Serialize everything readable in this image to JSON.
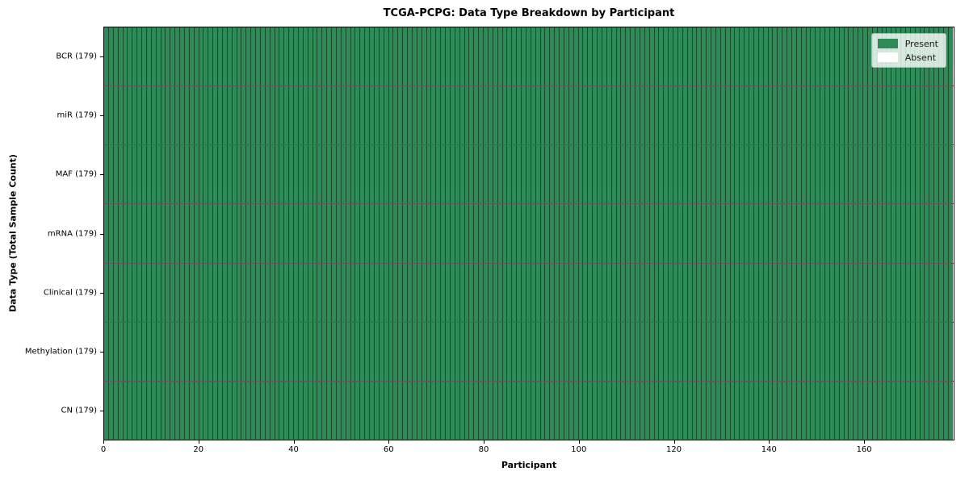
{
  "chart_data": {
    "type": "heatmap",
    "title": "TCGA-PCPG: Data Type Breakdown by Participant",
    "xlabel": "Participant",
    "ylabel": "Data Type (Total Sample Count)",
    "x_range": [
      0,
      179
    ],
    "x_ticks": [
      0,
      20,
      40,
      60,
      80,
      100,
      120,
      140,
      160
    ],
    "n_participants": 179,
    "rows": [
      {
        "label": "BCR (179)",
        "data_type": "BCR",
        "total_samples": 179,
        "present_count": 179,
        "absent_count": 0
      },
      {
        "label": "miR (179)",
        "data_type": "miR",
        "total_samples": 179,
        "present_count": 179,
        "absent_count": 0
      },
      {
        "label": "MAF (179)",
        "data_type": "MAF",
        "total_samples": 179,
        "present_count": 179,
        "absent_count": 0
      },
      {
        "label": "mRNA (179)",
        "data_type": "mRNA",
        "total_samples": 179,
        "present_count": 179,
        "absent_count": 0
      },
      {
        "label": "Clinical (179)",
        "data_type": "Clinical",
        "total_samples": 179,
        "present_count": 179,
        "absent_count": 0
      },
      {
        "label": "Methylation (179)",
        "data_type": "Methylation",
        "total_samples": 179,
        "present_count": 179,
        "absent_count": 0
      },
      {
        "label": "CN (179)",
        "data_type": "CN",
        "total_samples": 179,
        "present_count": 179,
        "absent_count": 0
      }
    ],
    "legend": {
      "position": "upper right",
      "entries": [
        {
          "label": "Present",
          "color": "#2e8b57"
        },
        {
          "label": "Absent",
          "color": "#ffffff"
        }
      ]
    },
    "colors": {
      "present": "#2e8b57",
      "absent": "#ffffff",
      "cell_edge": "rgba(0,0,0,0.45)",
      "row_divider": "rgba(0,0,0,0.65)",
      "axis": "#000000"
    },
    "grid": false
  }
}
